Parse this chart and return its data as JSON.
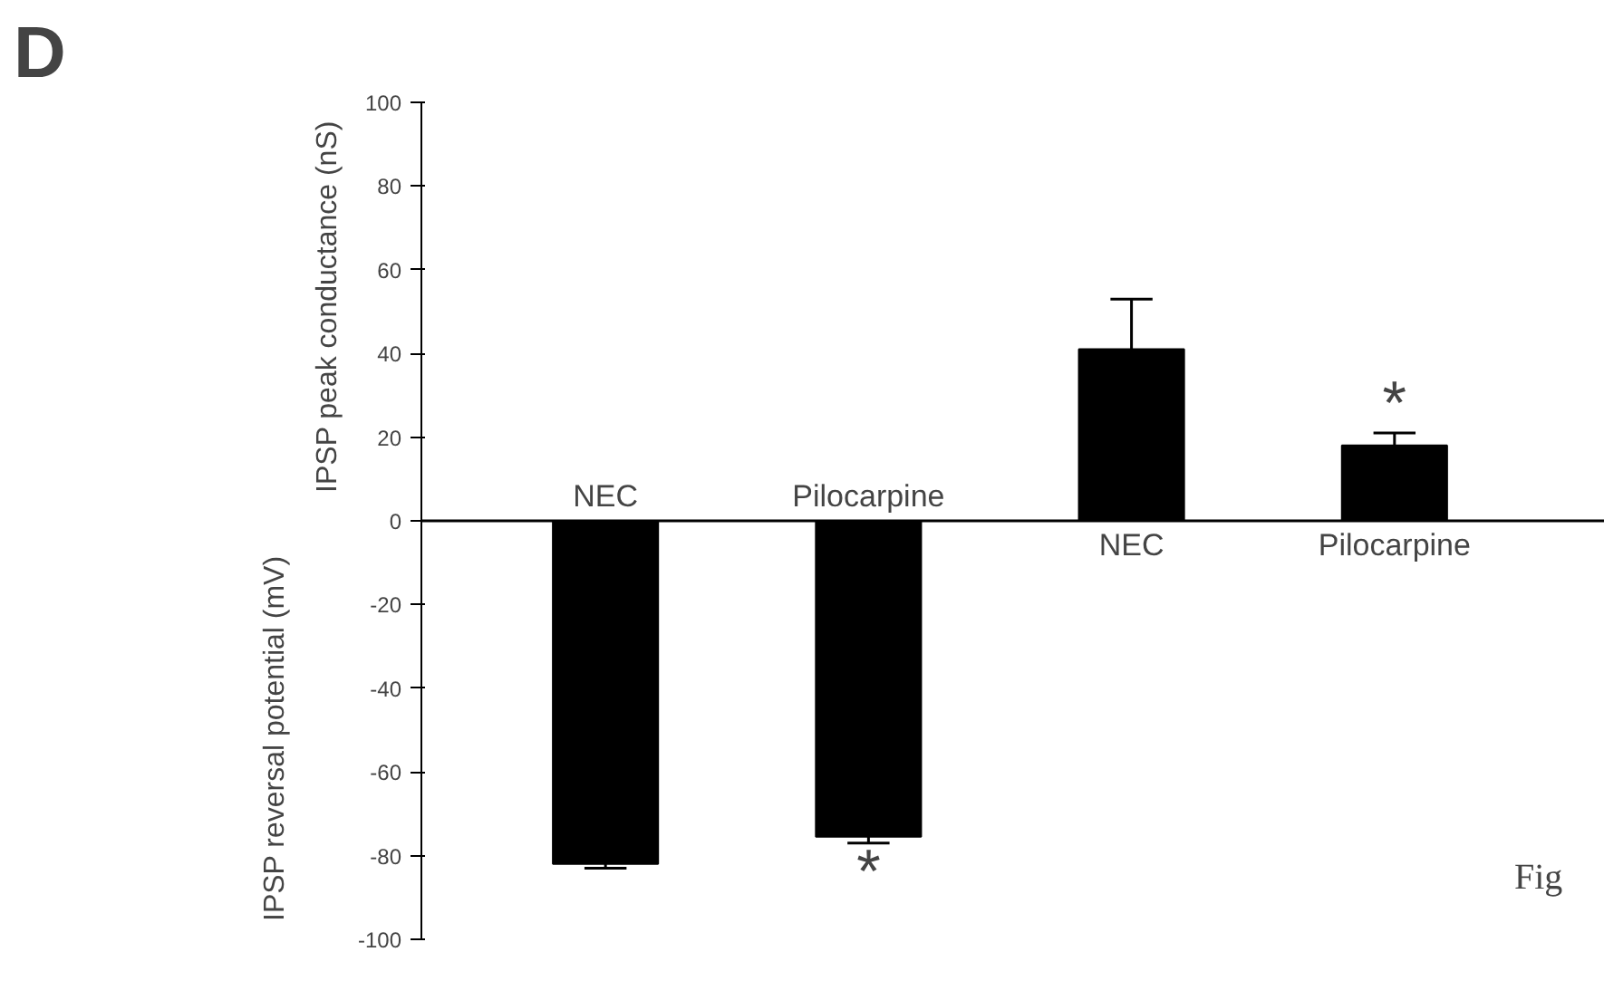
{
  "chart_data": {
    "type": "bar",
    "categories": [
      "NEC",
      "Pilocarpine",
      "NEC",
      "Pilocarpine"
    ],
    "values": [
      -82,
      -75.5,
      41,
      18
    ],
    "errors": [
      [
        -83,
        -82
      ],
      [
        -77,
        -75.5
      ],
      [
        41,
        53
      ],
      [
        18,
        21
      ]
    ],
    "color": "#000000",
    "ylim": [
      -100,
      100
    ],
    "yticks": [
      -100,
      -80,
      -60,
      -40,
      -20,
      0,
      20,
      40,
      60,
      80,
      100
    ],
    "ylabel": "IPSP peak conductance (nS)",
    "annotations": [
      "*",
      "*",
      "D",
      "IPSP reversal potential (mV)",
      "Fig"
    ],
    "grid": false
  }
}
